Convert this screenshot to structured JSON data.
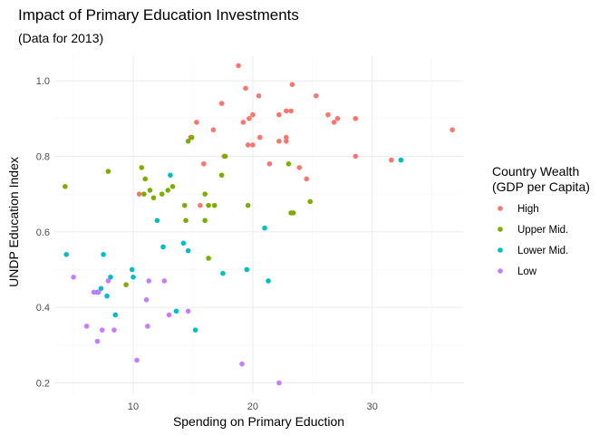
{
  "chart_data": {
    "type": "scatter",
    "title": "Impact of Primary Education Investments",
    "subtitle": "(Data for 2013)",
    "xlabel": "Spending on Primary Eduction",
    "ylabel": "UNDP Education Index",
    "xlim": [
      3.4,
      37.6
    ],
    "ylim": [
      0.17,
      1.065
    ],
    "x_ticks": [
      10,
      20,
      30
    ],
    "y_ticks": [
      0.2,
      0.4,
      0.6,
      0.8,
      1.0
    ],
    "x_tick_labels": [
      "10",
      "20",
      "30"
    ],
    "y_tick_labels": [
      "0.2",
      "0.4",
      "0.6",
      "0.8",
      "1.0"
    ],
    "grid": true,
    "legend": {
      "title_line1": "Country Wealth",
      "title_line2": "(GDP per Capita)",
      "placement": "right"
    },
    "series": [
      {
        "name": "High",
        "color": "#F8766D",
        "points": [
          [
            18.8,
            1.04
          ],
          [
            19.4,
            0.98
          ],
          [
            20.5,
            0.96
          ],
          [
            23.3,
            0.99
          ],
          [
            25.3,
            0.96
          ],
          [
            17.4,
            0.94
          ],
          [
            22.8,
            0.92
          ],
          [
            23.2,
            0.92
          ],
          [
            26.3,
            0.91
          ],
          [
            26.8,
            0.89
          ],
          [
            22.2,
            0.91
          ],
          [
            20.0,
            0.91
          ],
          [
            19.7,
            0.9
          ],
          [
            19.2,
            0.89
          ],
          [
            15.3,
            0.89
          ],
          [
            27.1,
            0.9
          ],
          [
            28.6,
            0.9
          ],
          [
            14.8,
            0.85
          ],
          [
            16.7,
            0.87
          ],
          [
            20.6,
            0.85
          ],
          [
            22.8,
            0.85
          ],
          [
            19.6,
            0.83
          ],
          [
            20.0,
            0.83
          ],
          [
            22.2,
            0.84
          ],
          [
            22.8,
            0.84
          ],
          [
            17.6,
            0.8
          ],
          [
            28.6,
            0.8
          ],
          [
            23.9,
            0.77
          ],
          [
            21.4,
            0.78
          ],
          [
            15.9,
            0.78
          ],
          [
            24.5,
            0.74
          ],
          [
            31.6,
            0.79
          ],
          [
            36.7,
            0.87
          ],
          [
            10.5,
            0.7
          ],
          [
            15.6,
            0.67
          ]
        ]
      },
      {
        "name": "Upper Mid.",
        "color": "#7CAE00",
        "points": [
          [
            4.3,
            0.72
          ],
          [
            7.9,
            0.76
          ],
          [
            10.7,
            0.77
          ],
          [
            11.0,
            0.74
          ],
          [
            11.4,
            0.71
          ],
          [
            10.9,
            0.7
          ],
          [
            11.7,
            0.69
          ],
          [
            12.4,
            0.7
          ],
          [
            12.9,
            0.71
          ],
          [
            13.3,
            0.72
          ],
          [
            14.6,
            0.84
          ],
          [
            14.9,
            0.85
          ],
          [
            17.4,
            0.75
          ],
          [
            17.7,
            0.8
          ],
          [
            16.0,
            0.7
          ],
          [
            16.3,
            0.67
          ],
          [
            16.8,
            0.67
          ],
          [
            14.3,
            0.67
          ],
          [
            14.4,
            0.63
          ],
          [
            16.0,
            0.63
          ],
          [
            16.3,
            0.53
          ],
          [
            19.6,
            0.67
          ],
          [
            23.0,
            0.78
          ],
          [
            23.2,
            0.65
          ],
          [
            23.4,
            0.65
          ],
          [
            24.8,
            0.68
          ],
          [
            9.4,
            0.46
          ]
        ]
      },
      {
        "name": "Lower Mid.",
        "color": "#00BFC4",
        "points": [
          [
            4.4,
            0.54
          ],
          [
            7.5,
            0.54
          ],
          [
            8.1,
            0.48
          ],
          [
            9.9,
            0.5
          ],
          [
            10.0,
            0.48
          ],
          [
            7.8,
            0.43
          ],
          [
            8.5,
            0.38
          ],
          [
            12.0,
            0.63
          ],
          [
            12.5,
            0.56
          ],
          [
            13.1,
            0.75
          ],
          [
            14.2,
            0.57
          ],
          [
            14.6,
            0.55
          ],
          [
            13.6,
            0.39
          ],
          [
            15.2,
            0.34
          ],
          [
            17.5,
            0.49
          ],
          [
            19.5,
            0.5
          ],
          [
            21.0,
            0.61
          ],
          [
            21.3,
            0.47
          ],
          [
            32.4,
            0.79
          ],
          [
            7.0,
            0.44
          ],
          [
            7.3,
            0.45
          ]
        ]
      },
      {
        "name": "Low",
        "color": "#C77CFF",
        "points": [
          [
            5.0,
            0.48
          ],
          [
            6.7,
            0.44
          ],
          [
            7.1,
            0.44
          ],
          [
            7.9,
            0.47
          ],
          [
            8.4,
            0.34
          ],
          [
            6.1,
            0.35
          ],
          [
            7.4,
            0.34
          ],
          [
            7.0,
            0.31
          ],
          [
            10.3,
            0.26
          ],
          [
            11.1,
            0.42
          ],
          [
            11.2,
            0.35
          ],
          [
            11.3,
            0.47
          ],
          [
            12.6,
            0.47
          ],
          [
            13.0,
            0.38
          ],
          [
            14.6,
            0.39
          ],
          [
            19.1,
            0.25
          ],
          [
            22.2,
            0.2
          ]
        ]
      }
    ]
  }
}
